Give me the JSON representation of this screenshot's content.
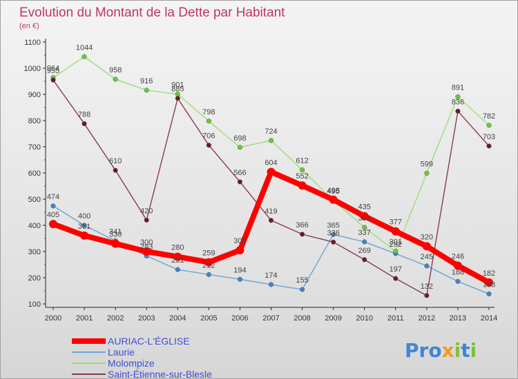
{
  "chart_data": {
    "type": "line",
    "title": "Evolution du Montant de la Dette par Habitant",
    "unit_label": "(en €)",
    "xlabel": "",
    "ylabel": "",
    "ylim": [
      100,
      1100
    ],
    "y_ticks": [
      100,
      200,
      300,
      400,
      500,
      600,
      700,
      800,
      900,
      1000,
      1100
    ],
    "categories": [
      "2000",
      "2001",
      "2002",
      "2003",
      "2004",
      "2005",
      "2006",
      "2007",
      "2008",
      "2009",
      "2010",
      "2011",
      "2012",
      "2013",
      "2014"
    ],
    "series": [
      {
        "name": "Laurie",
        "color": "#6aa4d8",
        "marker": "#3f86c6",
        "values": [
          474,
          400,
          341,
          283,
          231,
          212,
          194,
          174,
          155,
          365,
          337,
          292,
          245,
          186,
          138
        ]
      },
      {
        "name": "Molompize",
        "color": "#99dd77",
        "marker": "#66cc33",
        "values": [
          964,
          1044,
          958,
          916,
          901,
          798,
          698,
          724,
          612,
          495,
          392,
          301,
          599,
          891,
          782
        ]
      },
      {
        "name": "Saint-Étienne-sur-Blesle",
        "color": "#8a3a48",
        "marker": "#6a1a28",
        "values": [
          955,
          788,
          610,
          420,
          885,
          706,
          566,
          419,
          366,
          336,
          269,
          197,
          132,
          836,
          703
        ]
      },
      {
        "name": "AURIAC-L'ÉGLISE",
        "color": "#ff0000",
        "marker": "#ff0000",
        "values": [
          405,
          361,
          330,
          300,
          280,
          259,
          305,
          604,
          552,
          498,
          435,
          377,
          320,
          246,
          182
        ]
      }
    ],
    "legend_order": [
      "AURIAC-L'ÉGLISE",
      "Laurie",
      "Molompize",
      "Saint-Étienne-sur-Blesle"
    ],
    "legend_position": "bottom-left",
    "grid": false
  },
  "logo": {
    "text": "Proxiti"
  }
}
